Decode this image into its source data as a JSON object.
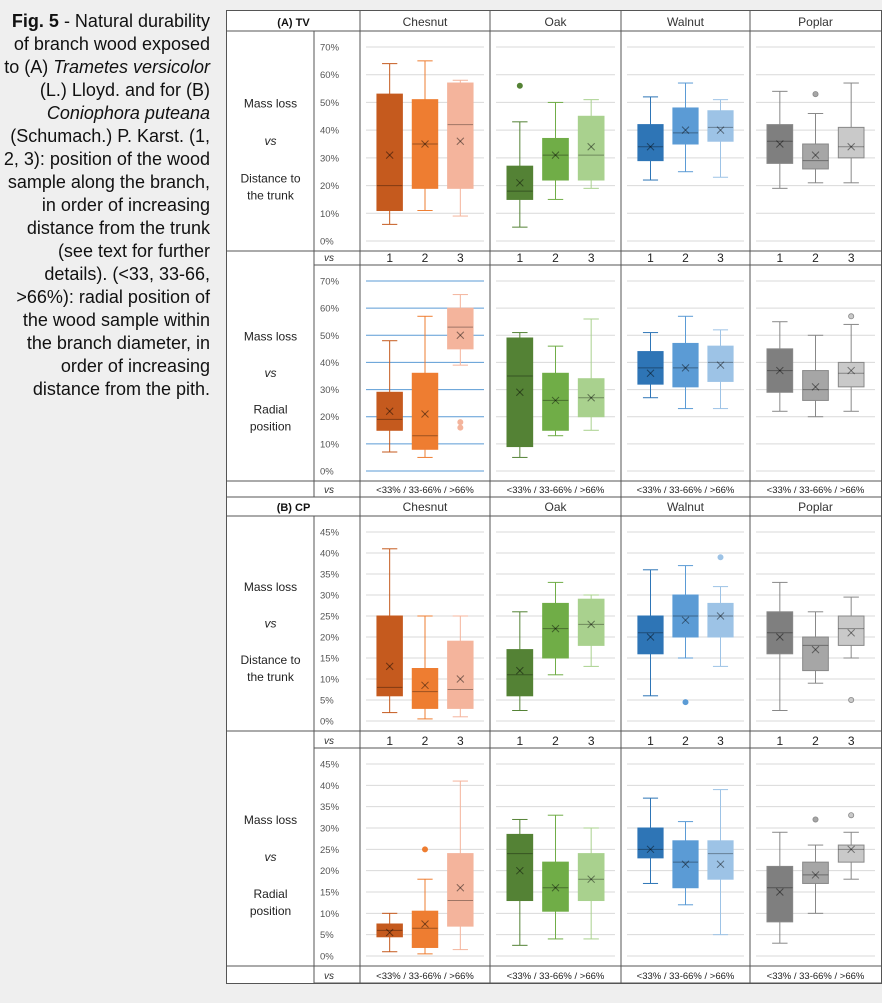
{
  "caption": {
    "fig_label": "Fig. 5",
    "parts": [
      {
        "t": " - Natural durability of branch wood exposed to (A) ",
        "i": false
      },
      {
        "t": "Trametes versicolor",
        "i": true
      },
      {
        "t": " (L.) Lloyd. and for (B) ",
        "i": false
      },
      {
        "t": "Coniophora puteana",
        "i": true
      },
      {
        "t": " (Schumach.) P. Karst. (1, 2, 3): position of the wood sample along the branch, in order of increasing distance from the trunk (see text for further details). (<33, 33-66, >66%): radial position of the wood sample within the branch diameter, in order of increasing distance from the pith.",
        "i": false
      }
    ]
  },
  "figure": {
    "species": [
      "Chesnut",
      "Oak",
      "Walnut",
      "Poplar"
    ],
    "colors": {
      "Chesnut": [
        "#c55a1e",
        "#ee7d31",
        "#f4b49c"
      ],
      "Oak": [
        "#548235",
        "#70ad47",
        "#a9d18e"
      ],
      "Walnut": [
        "#2e75b6",
        "#5b9bd5",
        "#9dc3e6"
      ],
      "Poplar": [
        "#7f7f7f",
        "#a6a6a6",
        "#c9c9c9"
      ]
    },
    "vs_label": "vs",
    "ytitle_distance": [
      "Mass loss",
      "vs",
      "Distance to",
      "the trunk"
    ],
    "ytitle_radial": [
      "Mass loss",
      "vs",
      "Radial",
      "position"
    ],
    "x_distance": [
      "1",
      "2",
      "3"
    ],
    "x_radial": "<33% / 33-66% / >66%"
  },
  "chart_data": [
    {
      "type": "box",
      "panel": "(A) TV",
      "row": "distance",
      "ylim": [
        0,
        70
      ],
      "yticks": [
        "0%",
        "10%",
        "20%",
        "30%",
        "40%",
        "50%",
        "60%",
        "70%"
      ],
      "categories": [
        "1",
        "2",
        "3"
      ],
      "series": [
        {
          "name": "Chesnut",
          "boxes": [
            {
              "min": 6,
              "q1": 11,
              "median": 20,
              "q3": 53,
              "max": 64,
              "mean": 31,
              "outliers": []
            },
            {
              "min": 11,
              "q1": 19,
              "median": 35,
              "q3": 51,
              "max": 65,
              "mean": 35,
              "outliers": []
            },
            {
              "min": 9,
              "q1": 19,
              "median": 42,
              "q3": 57,
              "max": 58,
              "mean": 36,
              "outliers": []
            }
          ]
        },
        {
          "name": "Oak",
          "boxes": [
            {
              "min": 5,
              "q1": 15,
              "median": 18,
              "q3": 27,
              "max": 43,
              "mean": 21,
              "outliers": [
                56
              ]
            },
            {
              "min": 15,
              "q1": 22,
              "median": 31,
              "q3": 37,
              "max": 50,
              "mean": 31,
              "outliers": []
            },
            {
              "min": 19,
              "q1": 22,
              "median": 31,
              "q3": 45,
              "max": 51,
              "mean": 34,
              "outliers": []
            }
          ]
        },
        {
          "name": "Walnut",
          "boxes": [
            {
              "min": 22,
              "q1": 29,
              "median": 34,
              "q3": 42,
              "max": 52,
              "mean": 34,
              "outliers": []
            },
            {
              "min": 25,
              "q1": 35,
              "median": 39,
              "q3": 48,
              "max": 57,
              "mean": 40,
              "outliers": []
            },
            {
              "min": 23,
              "q1": 36,
              "median": 41,
              "q3": 47,
              "max": 51,
              "mean": 40,
              "outliers": []
            }
          ]
        },
        {
          "name": "Poplar",
          "boxes": [
            {
              "min": 19,
              "q1": 28,
              "median": 36,
              "q3": 42,
              "max": 54,
              "mean": 35,
              "outliers": []
            },
            {
              "min": 21,
              "q1": 26,
              "median": 29,
              "q3": 35,
              "max": 46,
              "mean": 31,
              "outliers": [
                53
              ]
            },
            {
              "min": 21,
              "q1": 30,
              "median": 34,
              "q3": 41,
              "max": 57,
              "mean": 34,
              "outliers": []
            }
          ]
        }
      ]
    },
    {
      "type": "box",
      "panel": "(A) TV",
      "row": "radial",
      "ylim": [
        0,
        70
      ],
      "yticks": [
        "0%",
        "10%",
        "20%",
        "30%",
        "40%",
        "50%",
        "60%",
        "70%"
      ],
      "categories": [
        "<33%",
        "33-66%",
        ">66%"
      ],
      "series": [
        {
          "name": "Chesnut",
          "boxes": [
            {
              "min": 7,
              "q1": 15,
              "median": 19,
              "q3": 29,
              "max": 48,
              "mean": 22,
              "outliers": []
            },
            {
              "min": 5,
              "q1": 8,
              "median": 13,
              "q3": 36,
              "max": 57,
              "mean": 21,
              "outliers": []
            },
            {
              "min": 39,
              "q1": 45,
              "median": 53,
              "q3": 60,
              "max": 65,
              "mean": 50,
              "outliers": [
                16,
                18
              ]
            }
          ]
        },
        {
          "name": "Oak",
          "boxes": [
            {
              "min": 5,
              "q1": 9,
              "median": 35,
              "q3": 49,
              "max": 51,
              "mean": 29,
              "outliers": []
            },
            {
              "min": 13,
              "q1": 15,
              "median": 26,
              "q3": 36,
              "max": 46,
              "mean": 26,
              "outliers": []
            },
            {
              "min": 15,
              "q1": 20,
              "median": 27,
              "q3": 34,
              "max": 56,
              "mean": 27,
              "outliers": []
            }
          ]
        },
        {
          "name": "Walnut",
          "boxes": [
            {
              "min": 27,
              "q1": 32,
              "median": 38,
              "q3": 44,
              "max": 51,
              "mean": 36,
              "outliers": []
            },
            {
              "min": 23,
              "q1": 31,
              "median": 38,
              "q3": 47,
              "max": 57,
              "mean": 38,
              "outliers": []
            },
            {
              "min": 23,
              "q1": 33,
              "median": 40,
              "q3": 46,
              "max": 52,
              "mean": 39,
              "outliers": []
            }
          ]
        },
        {
          "name": "Poplar",
          "boxes": [
            {
              "min": 22,
              "q1": 29,
              "median": 37,
              "q3": 45,
              "max": 55,
              "mean": 37,
              "outliers": []
            },
            {
              "min": 20,
              "q1": 26,
              "median": 30,
              "q3": 37,
              "max": 50,
              "mean": 31,
              "outliers": []
            },
            {
              "min": 22,
              "q1": 31,
              "median": 36,
              "q3": 40,
              "max": 54,
              "mean": 37,
              "outliers": [
                57
              ]
            }
          ]
        }
      ]
    },
    {
      "type": "box",
      "panel": "(B) CP",
      "row": "distance",
      "ylim": [
        0,
        45
      ],
      "yticks": [
        "0%",
        "5%",
        "10%",
        "15%",
        "20%",
        "25%",
        "30%",
        "35%",
        "40%",
        "45%"
      ],
      "categories": [
        "1",
        "2",
        "3"
      ],
      "series": [
        {
          "name": "Chesnut",
          "boxes": [
            {
              "min": 2,
              "q1": 6,
              "median": 8,
              "q3": 25,
              "max": 41,
              "mean": 13,
              "outliers": []
            },
            {
              "min": 0.5,
              "q1": 3,
              "median": 7,
              "q3": 12.5,
              "max": 25,
              "mean": 8.5,
              "outliers": []
            },
            {
              "min": 1,
              "q1": 3,
              "median": 7.5,
              "q3": 19,
              "max": 25,
              "mean": 10,
              "outliers": []
            }
          ]
        },
        {
          "name": "Oak",
          "boxes": [
            {
              "min": 2.5,
              "q1": 6,
              "median": 11,
              "q3": 17,
              "max": 26,
              "mean": 12,
              "outliers": []
            },
            {
              "min": 11,
              "q1": 15,
              "median": 22,
              "q3": 28,
              "max": 33,
              "mean": 22,
              "outliers": []
            },
            {
              "min": 13,
              "q1": 18,
              "median": 23,
              "q3": 29,
              "max": 30,
              "mean": 23,
              "outliers": []
            }
          ]
        },
        {
          "name": "Walnut",
          "boxes": [
            {
              "min": 6,
              "q1": 16,
              "median": 21,
              "q3": 25,
              "max": 36,
              "mean": 20,
              "outliers": []
            },
            {
              "min": 15,
              "q1": 20,
              "median": 25,
              "q3": 30,
              "max": 37,
              "mean": 24,
              "outliers": [
                4.5
              ]
            },
            {
              "min": 13,
              "q1": 20,
              "median": 25,
              "q3": 28,
              "max": 32,
              "mean": 25,
              "outliers": [
                39
              ]
            }
          ]
        },
        {
          "name": "Poplar",
          "boxes": [
            {
              "min": 2.5,
              "q1": 16,
              "median": 21,
              "q3": 26,
              "max": 33,
              "mean": 20,
              "outliers": []
            },
            {
              "min": 9,
              "q1": 12,
              "median": 18,
              "q3": 20,
              "max": 26,
              "mean": 17,
              "outliers": []
            },
            {
              "min": 15,
              "q1": 18,
              "median": 22,
              "q3": 25,
              "max": 29.5,
              "mean": 21,
              "outliers": [
                5
              ]
            }
          ]
        }
      ]
    },
    {
      "type": "box",
      "panel": "(B) CP",
      "row": "radial",
      "ylim": [
        0,
        45
      ],
      "yticks": [
        "0%",
        "5%",
        "10%",
        "15%",
        "20%",
        "25%",
        "30%",
        "35%",
        "40%",
        "45%"
      ],
      "categories": [
        "<33%",
        "33-66%",
        ">66%"
      ],
      "series": [
        {
          "name": "Chesnut",
          "boxes": [
            {
              "min": 1,
              "q1": 4.5,
              "median": 6,
              "q3": 7.5,
              "max": 10,
              "mean": 5.5,
              "outliers": []
            },
            {
              "min": 0.5,
              "q1": 2,
              "median": 6.5,
              "q3": 10.5,
              "max": 18,
              "mean": 7.5,
              "outliers": [
                25
              ]
            },
            {
              "min": 1.5,
              "q1": 7,
              "median": 13,
              "q3": 24,
              "max": 41,
              "mean": 16,
              "outliers": []
            }
          ]
        },
        {
          "name": "Oak",
          "boxes": [
            {
              "min": 2.5,
              "q1": 13,
              "median": 24,
              "q3": 28.5,
              "max": 32,
              "mean": 20,
              "outliers": []
            },
            {
              "min": 4,
              "q1": 10.5,
              "median": 16,
              "q3": 22,
              "max": 33,
              "mean": 16,
              "outliers": []
            },
            {
              "min": 4,
              "q1": 13,
              "median": 18,
              "q3": 24,
              "max": 30,
              "mean": 18,
              "outliers": []
            }
          ]
        },
        {
          "name": "Walnut",
          "boxes": [
            {
              "min": 17,
              "q1": 23,
              "median": 25,
              "q3": 30,
              "max": 37,
              "mean": 25,
              "outliers": []
            },
            {
              "min": 12,
              "q1": 16,
              "median": 22,
              "q3": 27,
              "max": 31.5,
              "mean": 21.5,
              "outliers": []
            },
            {
              "min": 5,
              "q1": 18,
              "median": 24,
              "q3": 27,
              "max": 39,
              "mean": 21.5,
              "outliers": []
            }
          ]
        },
        {
          "name": "Poplar",
          "boxes": [
            {
              "min": 3,
              "q1": 8,
              "median": 16,
              "q3": 21,
              "max": 29,
              "mean": 15,
              "outliers": []
            },
            {
              "min": 10,
              "q1": 17,
              "median": 19,
              "q3": 22,
              "max": 26,
              "mean": 19,
              "outliers": [
                32
              ]
            },
            {
              "min": 18,
              "q1": 22,
              "median": 25,
              "q3": 26,
              "max": 29,
              "mean": 25,
              "outliers": [
                33
              ]
            }
          ]
        }
      ]
    }
  ]
}
